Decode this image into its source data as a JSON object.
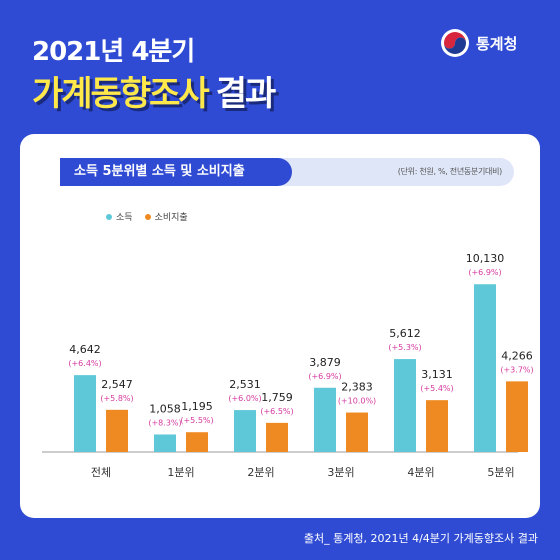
{
  "header": {
    "year_title": "2021년 4분기",
    "main_title": "가계동향조사",
    "main_suffix": "결과"
  },
  "logo": {
    "name": "통계청"
  },
  "subtitle": "소득 5분위별 소득 및 소비지출",
  "unit_note": "(단위: 천원, %, 전년동분기대비)",
  "source": "출처_ 통계청, 2021년 4/4분기 가계동향조사 결과",
  "colors": {
    "income": "#5ec8d8",
    "spending": "#ef8a23",
    "change": "#d63aa0",
    "brand": "#2f4bd3"
  },
  "chart_data": {
    "type": "bar",
    "categories": [
      "전체",
      "1분위",
      "2분위",
      "3분위",
      "4분위",
      "5분위"
    ],
    "series": [
      {
        "name": "소득",
        "values": [
          4642,
          1058,
          2531,
          3879,
          5612,
          10130
        ],
        "labels": [
          "4,642",
          "1,058",
          "2,531",
          "3,879",
          "5,612",
          "10,130"
        ],
        "changes": [
          "(+6.4%)",
          "(+8.3%)",
          "(+6.0%)",
          "(+6.9%)",
          "(+5.3%)",
          "(+6.9%)"
        ]
      },
      {
        "name": "소비지출",
        "values": [
          2547,
          1195,
          1759,
          2383,
          3131,
          4266
        ],
        "labels": [
          "2,547",
          "1,195",
          "1,759",
          "2,383",
          "3,131",
          "4,266"
        ],
        "changes": [
          "(+5.8%)",
          "(+5.5%)",
          "(+6.5%)",
          "(+10.0%)",
          "(+5.4%)",
          "(+3.7%)"
        ]
      }
    ]
  }
}
